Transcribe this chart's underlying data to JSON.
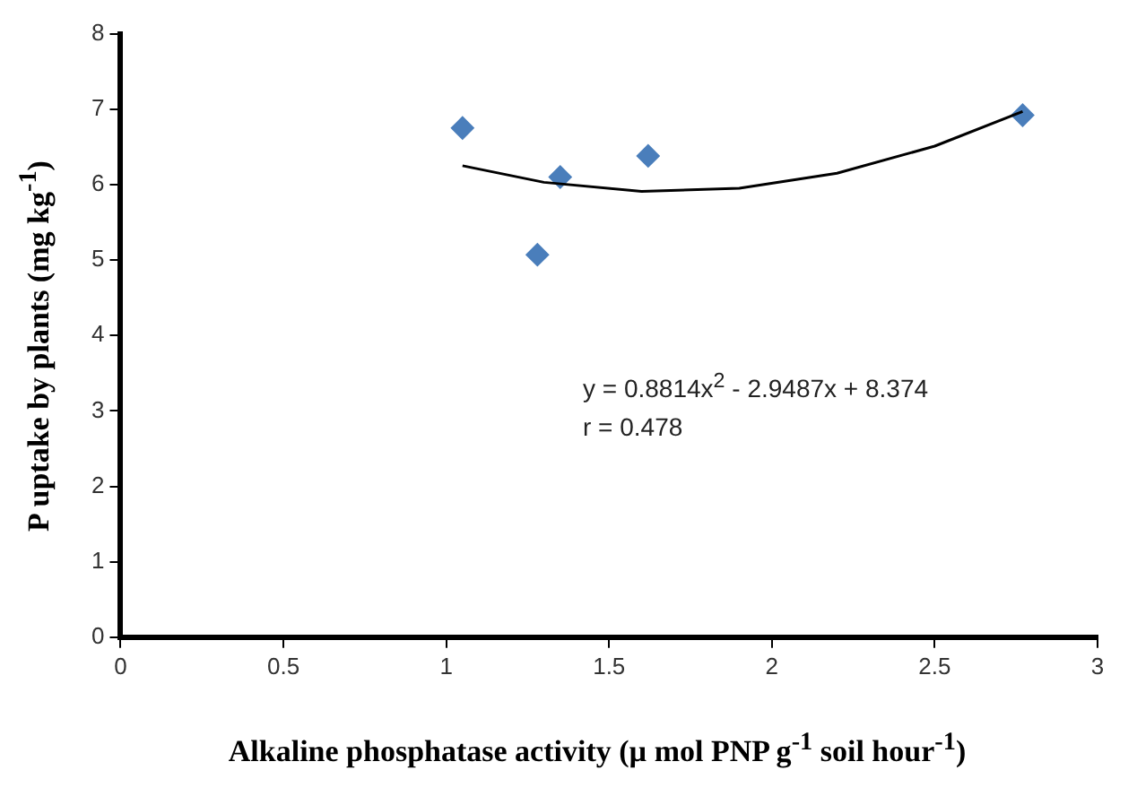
{
  "chart_data": {
    "type": "scatter",
    "xlabel": "Alkaline phosphatase activity (µ mol PNP g$^{-1}$ soil hour$^{-1}$)",
    "ylabel": "P uptake by plants (mg kg$^{-1}$)",
    "xlim": [
      0,
      3
    ],
    "xticks": [
      0,
      0.5,
      1,
      1.5,
      2,
      2.5,
      3
    ],
    "ylim": [
      0,
      8
    ],
    "yticks": [
      0,
      1,
      2,
      3,
      4,
      5,
      6,
      7,
      8
    ],
    "grid": false,
    "legend": false,
    "annotations": [
      "y = 0.8814x$^{2}$ - 2.9487x + 8.374",
      "r = 0.478"
    ],
    "series": [
      {
        "marker": "diamond",
        "color": "#4a7ebb",
        "x": [
          1.05,
          1.28,
          1.35,
          1.62,
          2.77
        ],
        "values": [
          6.75,
          5.07,
          6.1,
          6.38,
          6.92
        ]
      },
      {
        "type": "line",
        "marker": "none",
        "color": "#000000",
        "x": [
          1.05,
          1.3,
          1.6,
          1.9,
          2.2,
          2.5,
          2.77
        ],
        "values": [
          6.25,
          6.03,
          5.91,
          5.95,
          6.15,
          6.51,
          6.97
        ]
      }
    ]
  }
}
